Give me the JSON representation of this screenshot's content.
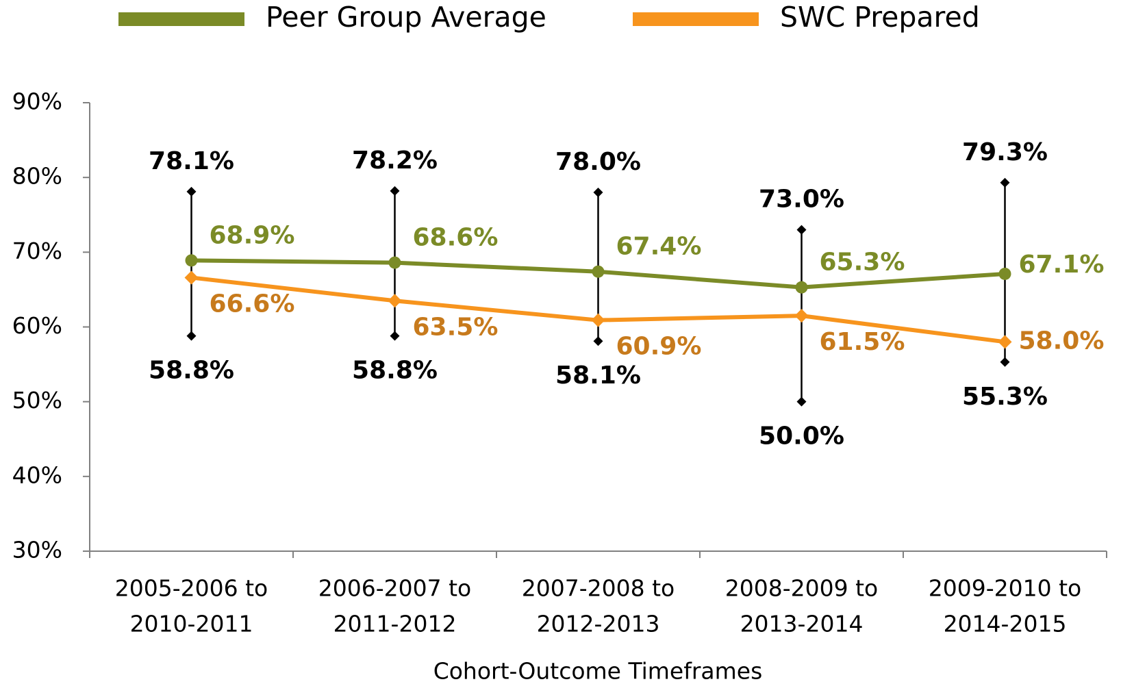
{
  "chart_data": {
    "type": "line",
    "x_label": "Cohort-Outcome Timeframes",
    "categories": [
      [
        "2005-2006 to",
        "2010-2011"
      ],
      [
        "2006-2007 to",
        "2011-2012"
      ],
      [
        "2007-2008 to",
        "2012-2013"
      ],
      [
        "2008-2009 to",
        "2013-2014"
      ],
      [
        "2009-2010 to",
        "2014-2015"
      ]
    ],
    "series": [
      {
        "name": "Peer Group Average",
        "color": "#7b8b27",
        "label_color": "#7b8b27",
        "marker": "circle",
        "values": [
          68.9,
          68.6,
          67.4,
          65.3,
          67.1
        ],
        "value_labels": [
          "68.9%",
          "68.6%",
          "67.4%",
          "65.3%",
          "67.1%"
        ]
      },
      {
        "name": "SWC Prepared",
        "color": "#f7941d",
        "label_color": "#c77a1c",
        "marker": "diamond",
        "values": [
          66.6,
          63.5,
          60.9,
          61.5,
          58.0
        ],
        "value_labels": [
          "66.6%",
          "63.5%",
          "60.9%",
          "61.5%",
          "58.0%"
        ]
      }
    ],
    "range": {
      "color": "#000000",
      "high": [
        78.1,
        78.2,
        78.0,
        73.0,
        79.3
      ],
      "high_labels": [
        "78.1%",
        "78.2%",
        "78.0%",
        "73.0%",
        "79.3%"
      ],
      "low": [
        58.8,
        58.8,
        58.1,
        50.0,
        55.3
      ],
      "low_labels": [
        "58.8%",
        "58.8%",
        "58.1%",
        "50.0%",
        "55.3%"
      ]
    },
    "ylim": [
      30,
      90
    ],
    "yticks": [
      {
        "value": 30,
        "label": "30%"
      },
      {
        "value": 40,
        "label": "40%"
      },
      {
        "value": 50,
        "label": "50%"
      },
      {
        "value": 60,
        "label": "60%"
      },
      {
        "value": 70,
        "label": "70%"
      },
      {
        "value": 80,
        "label": "80%"
      },
      {
        "value": 90,
        "label": "90%"
      }
    ],
    "legend": "top",
    "grid": false
  }
}
